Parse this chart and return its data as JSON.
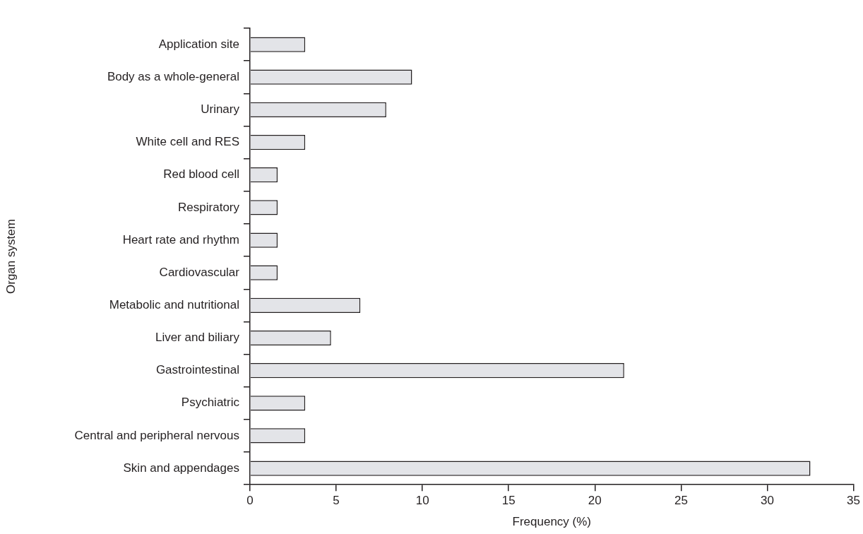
{
  "chart_data": {
    "type": "bar",
    "orientation": "horizontal",
    "xlabel": "Frequency (%)",
    "ylabel": "Organ system",
    "categories": [
      "Application site",
      "Body as a whole-general",
      "Urinary",
      "White cell and RES",
      "Red blood cell",
      "Respiratory",
      "Heart rate and rhythm",
      "Cardiovascular",
      "Metabolic and nutritional",
      "Liver and biliary",
      "Gastrointestinal",
      "Psychiatric",
      "Central and peripheral nervous",
      "Skin and appendages"
    ],
    "values": [
      3.2,
      9.4,
      7.9,
      3.2,
      1.6,
      1.6,
      1.6,
      1.6,
      6.4,
      4.7,
      21.7,
      3.2,
      3.2,
      32.5
    ],
    "color": "#e3e4e8",
    "xlim": [
      0,
      35
    ],
    "xticks": [
      0,
      5,
      10,
      15,
      20,
      25,
      30,
      35
    ],
    "grid": false,
    "legend": false
  }
}
